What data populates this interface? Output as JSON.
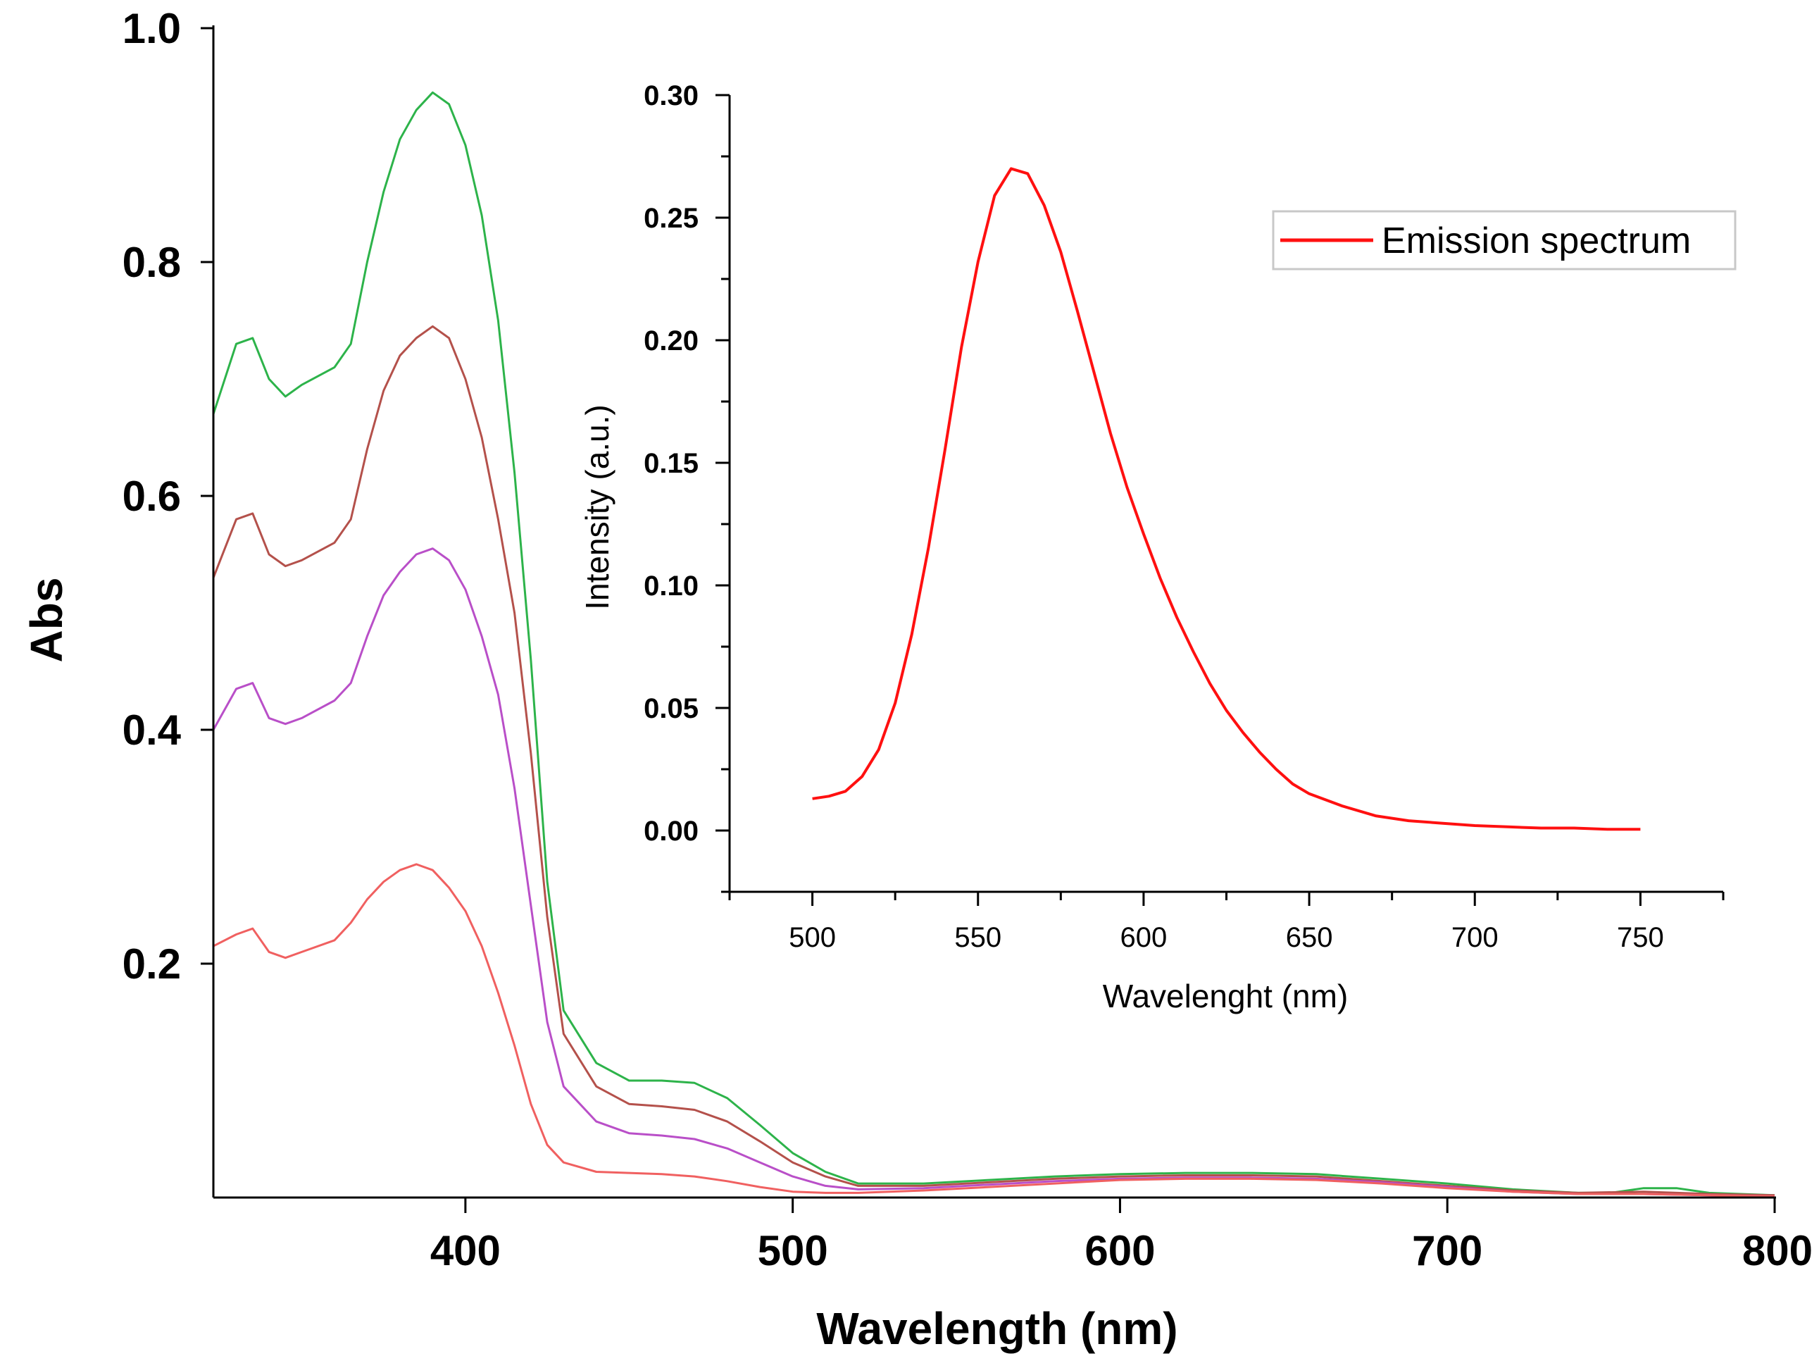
{
  "chart_data": [
    {
      "type": "line",
      "xlabel": "Wavelength (nm)",
      "ylabel": "Abs",
      "xlim": [
        323,
        800
      ],
      "ylim": [
        0,
        1.0
      ],
      "xticks": [
        400,
        500,
        600,
        700,
        800
      ],
      "yticks": [
        0.2,
        0.4,
        0.6,
        0.8,
        1.0
      ],
      "ytick_labels": [
        "0.2",
        "0.4",
        "0.6",
        "0.8",
        "1.0"
      ],
      "series": [
        {
          "name": "series-green",
          "color": "#2db34a",
          "points": [
            [
              323,
              0.67
            ],
            [
              330,
              0.73
            ],
            [
              335,
              0.735
            ],
            [
              340,
              0.7
            ],
            [
              345,
              0.685
            ],
            [
              350,
              0.695
            ],
            [
              360,
              0.71
            ],
            [
              365,
              0.73
            ],
            [
              370,
              0.8
            ],
            [
              375,
              0.86
            ],
            [
              380,
              0.905
            ],
            [
              385,
              0.93
            ],
            [
              390,
              0.945
            ],
            [
              395,
              0.935
            ],
            [
              400,
              0.9
            ],
            [
              405,
              0.84
            ],
            [
              410,
              0.75
            ],
            [
              415,
              0.62
            ],
            [
              420,
              0.46
            ],
            [
              425,
              0.27
            ],
            [
              430,
              0.16
            ],
            [
              440,
              0.115
            ],
            [
              450,
              0.1
            ],
            [
              460,
              0.1
            ],
            [
              470,
              0.098
            ],
            [
              480,
              0.085
            ],
            [
              490,
              0.062
            ],
            [
              500,
              0.038
            ],
            [
              510,
              0.022
            ],
            [
              520,
              0.012
            ],
            [
              540,
              0.012
            ],
            [
              560,
              0.015
            ],
            [
              580,
              0.018
            ],
            [
              600,
              0.02
            ],
            [
              620,
              0.021
            ],
            [
              640,
              0.021
            ],
            [
              660,
              0.02
            ],
            [
              680,
              0.016
            ],
            [
              700,
              0.012
            ],
            [
              720,
              0.007
            ],
            [
              740,
              0.004
            ],
            [
              750,
              0.004
            ],
            [
              760,
              0.008
            ],
            [
              770,
              0.008
            ],
            [
              780,
              0.004
            ],
            [
              800,
              0.002
            ]
          ]
        },
        {
          "name": "series-brown",
          "color": "#b4514b",
          "points": [
            [
              323,
              0.53
            ],
            [
              330,
              0.58
            ],
            [
              335,
              0.585
            ],
            [
              340,
              0.55
            ],
            [
              345,
              0.54
            ],
            [
              350,
              0.545
            ],
            [
              360,
              0.56
            ],
            [
              365,
              0.58
            ],
            [
              370,
              0.64
            ],
            [
              375,
              0.69
            ],
            [
              380,
              0.72
            ],
            [
              385,
              0.735
            ],
            [
              390,
              0.745
            ],
            [
              395,
              0.735
            ],
            [
              400,
              0.7
            ],
            [
              405,
              0.65
            ],
            [
              410,
              0.58
            ],
            [
              415,
              0.5
            ],
            [
              420,
              0.38
            ],
            [
              425,
              0.24
            ],
            [
              430,
              0.14
            ],
            [
              440,
              0.095
            ],
            [
              450,
              0.08
            ],
            [
              460,
              0.078
            ],
            [
              470,
              0.075
            ],
            [
              480,
              0.065
            ],
            [
              490,
              0.048
            ],
            [
              500,
              0.03
            ],
            [
              510,
              0.018
            ],
            [
              520,
              0.01
            ],
            [
              540,
              0.01
            ],
            [
              560,
              0.013
            ],
            [
              580,
              0.016
            ],
            [
              600,
              0.018
            ],
            [
              620,
              0.019
            ],
            [
              640,
              0.019
            ],
            [
              660,
              0.018
            ],
            [
              680,
              0.014
            ],
            [
              700,
              0.01
            ],
            [
              720,
              0.006
            ],
            [
              740,
              0.004
            ],
            [
              760,
              0.005
            ],
            [
              780,
              0.003
            ],
            [
              800,
              0.002
            ]
          ]
        },
        {
          "name": "series-violet",
          "color": "#b94fc8",
          "points": [
            [
              323,
              0.4
            ],
            [
              330,
              0.435
            ],
            [
              335,
              0.44
            ],
            [
              340,
              0.41
            ],
            [
              345,
              0.405
            ],
            [
              350,
              0.41
            ],
            [
              360,
              0.425
            ],
            [
              365,
              0.44
            ],
            [
              370,
              0.48
            ],
            [
              375,
              0.515
            ],
            [
              380,
              0.535
            ],
            [
              385,
              0.55
            ],
            [
              390,
              0.555
            ],
            [
              395,
              0.545
            ],
            [
              400,
              0.52
            ],
            [
              405,
              0.48
            ],
            [
              410,
              0.43
            ],
            [
              415,
              0.35
            ],
            [
              420,
              0.25
            ],
            [
              425,
              0.15
            ],
            [
              430,
              0.095
            ],
            [
              440,
              0.065
            ],
            [
              450,
              0.055
            ],
            [
              460,
              0.053
            ],
            [
              470,
              0.05
            ],
            [
              480,
              0.042
            ],
            [
              490,
              0.03
            ],
            [
              500,
              0.018
            ],
            [
              510,
              0.01
            ],
            [
              520,
              0.007
            ],
            [
              540,
              0.008
            ],
            [
              560,
              0.011
            ],
            [
              580,
              0.014
            ],
            [
              600,
              0.016
            ],
            [
              620,
              0.017
            ],
            [
              640,
              0.017
            ],
            [
              660,
              0.016
            ],
            [
              680,
              0.013
            ],
            [
              700,
              0.009
            ],
            [
              720,
              0.005
            ],
            [
              740,
              0.003
            ],
            [
              760,
              0.003
            ],
            [
              780,
              0.002
            ],
            [
              800,
              0.001
            ]
          ]
        },
        {
          "name": "series-pink",
          "color": "#f06060",
          "points": [
            [
              323,
              0.215
            ],
            [
              330,
              0.225
            ],
            [
              335,
              0.23
            ],
            [
              340,
              0.21
            ],
            [
              345,
              0.205
            ],
            [
              350,
              0.21
            ],
            [
              360,
              0.22
            ],
            [
              365,
              0.235
            ],
            [
              370,
              0.255
            ],
            [
              375,
              0.27
            ],
            [
              380,
              0.28
            ],
            [
              385,
              0.285
            ],
            [
              390,
              0.28
            ],
            [
              395,
              0.265
            ],
            [
              400,
              0.245
            ],
            [
              405,
              0.215
            ],
            [
              410,
              0.175
            ],
            [
              415,
              0.13
            ],
            [
              420,
              0.08
            ],
            [
              425,
              0.045
            ],
            [
              430,
              0.03
            ],
            [
              440,
              0.022
            ],
            [
              450,
              0.021
            ],
            [
              460,
              0.02
            ],
            [
              470,
              0.018
            ],
            [
              480,
              0.014
            ],
            [
              490,
              0.009
            ],
            [
              500,
              0.005
            ],
            [
              510,
              0.004
            ],
            [
              520,
              0.004
            ],
            [
              540,
              0.006
            ],
            [
              560,
              0.009
            ],
            [
              580,
              0.012
            ],
            [
              600,
              0.015
            ],
            [
              620,
              0.016
            ],
            [
              640,
              0.016
            ],
            [
              660,
              0.015
            ],
            [
              680,
              0.012
            ],
            [
              700,
              0.008
            ],
            [
              720,
              0.005
            ],
            [
              740,
              0.003
            ],
            [
              760,
              0.003
            ],
            [
              780,
              0.002
            ],
            [
              800,
              0.001
            ]
          ]
        }
      ]
    },
    {
      "type": "line",
      "xlabel": "Wavelenght (nm)",
      "ylabel": "Intensity (a.u.)",
      "xlim": [
        475,
        775
      ],
      "ylim": [
        -0.025,
        0.3
      ],
      "xticks": [
        500,
        550,
        600,
        650,
        700,
        750
      ],
      "yticks": [
        0.0,
        0.05,
        0.1,
        0.15,
        0.2,
        0.25,
        0.3
      ],
      "ytick_labels": [
        "0.00",
        "0.05",
        "0.10",
        "0.15",
        "0.20",
        "0.25",
        "0.30"
      ],
      "legend": {
        "position": "top-right",
        "entries": [
          "Emission spectrum"
        ]
      },
      "series": [
        {
          "name": "Emission spectrum",
          "color": "#ff1010",
          "points": [
            [
              500,
              0.013
            ],
            [
              505,
              0.014
            ],
            [
              510,
              0.016
            ],
            [
              515,
              0.022
            ],
            [
              520,
              0.033
            ],
            [
              525,
              0.052
            ],
            [
              530,
              0.08
            ],
            [
              535,
              0.115
            ],
            [
              540,
              0.155
            ],
            [
              545,
              0.197
            ],
            [
              550,
              0.232
            ],
            [
              555,
              0.259
            ],
            [
              560,
              0.27
            ],
            [
              565,
              0.268
            ],
            [
              570,
              0.255
            ],
            [
              575,
              0.236
            ],
            [
              580,
              0.212
            ],
            [
              585,
              0.187
            ],
            [
              590,
              0.162
            ],
            [
              595,
              0.14
            ],
            [
              600,
              0.121
            ],
            [
              605,
              0.103
            ],
            [
              610,
              0.087
            ],
            [
              615,
              0.073
            ],
            [
              620,
              0.06
            ],
            [
              625,
              0.049
            ],
            [
              630,
              0.04
            ],
            [
              635,
              0.032
            ],
            [
              640,
              0.025
            ],
            [
              645,
              0.019
            ],
            [
              650,
              0.015
            ],
            [
              660,
              0.01
            ],
            [
              670,
              0.006
            ],
            [
              680,
              0.004
            ],
            [
              690,
              0.003
            ],
            [
              700,
              0.002
            ],
            [
              710,
              0.0015
            ],
            [
              720,
              0.001
            ],
            [
              730,
              0.001
            ],
            [
              740,
              0.0005
            ],
            [
              750,
              0.0005
            ]
          ]
        }
      ]
    }
  ]
}
